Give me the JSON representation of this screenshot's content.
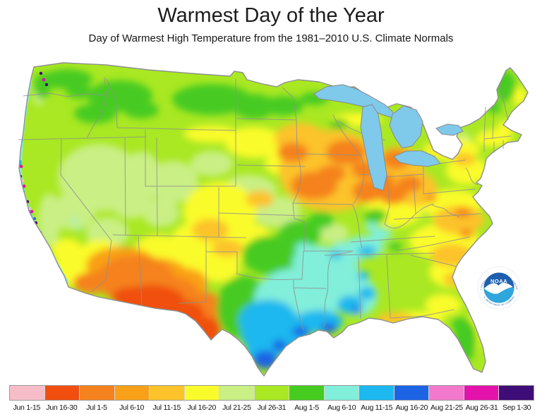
{
  "title": "Warmest Day of the Year",
  "subtitle": "Day of Warmest High Temperature from the 1981–2010 U.S. Climate Normals",
  "map": {
    "region": "Contiguous United States",
    "lake_color": "#7fc9ea",
    "outline_color": "#8f8f8f",
    "state_border_color": "#909090"
  },
  "logo": {
    "acronym": "NOAA",
    "ring_top": "NATIONAL OCEANIC AND ATMOSPHERIC ADMINISTRATION",
    "ring_bottom": "U.S. DEPARTMENT OF COMMERCE",
    "dark_blue": "#1e5fae",
    "light_blue": "#2fa6dc"
  },
  "legend": {
    "items": [
      {
        "label": "Jun 1-15",
        "color": "#f6bdc9"
      },
      {
        "label": "Jun 16-30",
        "color": "#f04f0f"
      },
      {
        "label": "Jul 1-5",
        "color": "#f5821e"
      },
      {
        "label": "Jul 6-10",
        "color": "#f9a019"
      },
      {
        "label": "Jul 11-15",
        "color": "#fcc32a"
      },
      {
        "label": "Jul 16-20",
        "color": "#fafb2b"
      },
      {
        "label": "Jul 21-25",
        "color": "#c9ef85"
      },
      {
        "label": "Jul 26-31",
        "color": "#a9e822"
      },
      {
        "label": "Aug 1-5",
        "color": "#46cb20"
      },
      {
        "label": "Aug 6-10",
        "color": "#81efd9"
      },
      {
        "label": "Aug 11-15",
        "color": "#1cb8ef"
      },
      {
        "label": "Aug 16-20",
        "color": "#1d64e4"
      },
      {
        "label": "Aug 21-25",
        "color": "#f279cb"
      },
      {
        "label": "Aug 26-31",
        "color": "#e312ab"
      },
      {
        "label": "Sep 1-30",
        "color": "#3f0d77"
      }
    ]
  }
}
